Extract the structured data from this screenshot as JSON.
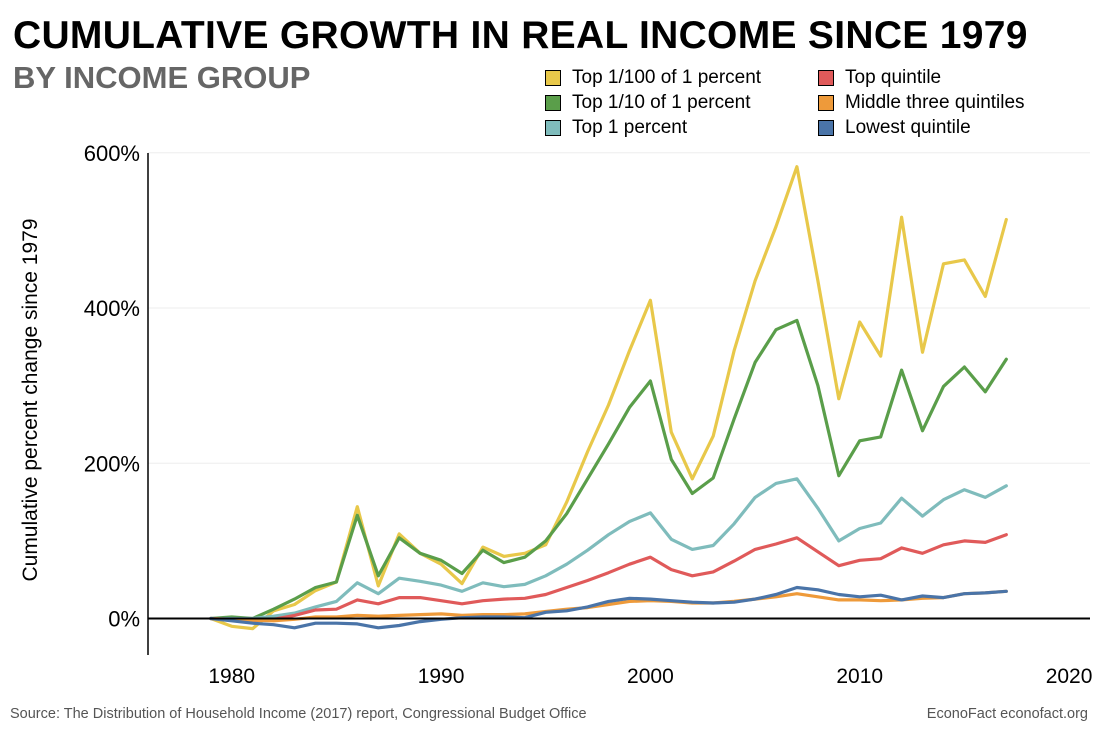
{
  "footer": {
    "source": "Source: The Distribution of Household Income (2017) report, Congressional Budget Office",
    "brand": "EconoFact  econofact.org"
  },
  "chart_data": {
    "type": "line",
    "title": "CUMULATIVE GROWTH IN REAL INCOME SINCE 1979",
    "subtitle": "BY INCOME GROUP",
    "xlabel": "",
    "ylabel": "Cumulative percent change since 1979",
    "xlim": [
      1976,
      2021
    ],
    "ylim": [
      -47,
      610
    ],
    "x_ticks": [
      1980,
      1990,
      2000,
      2010,
      2020
    ],
    "x_tick_labels": [
      "1980",
      "1990",
      "2000",
      "2010",
      "2020"
    ],
    "y_ticks": [
      0,
      200,
      400,
      600
    ],
    "y_tick_labels": [
      "0%",
      "200%",
      "400%",
      "600%"
    ],
    "grid": true,
    "legend_position": "top-right",
    "x": [
      1979,
      1980,
      1981,
      1982,
      1983,
      1984,
      1985,
      1986,
      1987,
      1988,
      1989,
      1990,
      1991,
      1992,
      1993,
      1994,
      1995,
      1996,
      1997,
      1998,
      1999,
      2000,
      2001,
      2002,
      2003,
      2004,
      2005,
      2006,
      2007,
      2008,
      2009,
      2010,
      2011,
      2012,
      2013,
      2014,
      2015,
      2016,
      2017
    ],
    "series": [
      {
        "name": "Top 1/100 of 1 percent",
        "color": "#e8c84a",
        "values": [
          0,
          -10,
          -13,
          10,
          18,
          36,
          47,
          144,
          42,
          109,
          84,
          70,
          45,
          92,
          80,
          84,
          95,
          150,
          215,
          275,
          345,
          410,
          240,
          180,
          235,
          345,
          435,
          505,
          582,
          435,
          283,
          382,
          338,
          517,
          343,
          457,
          462,
          415,
          514
        ]
      },
      {
        "name": "Top 1/10 of 1 percent",
        "color": "#5a9e4a",
        "values": [
          0,
          2,
          0,
          12,
          25,
          40,
          47,
          133,
          55,
          104,
          84,
          75,
          58,
          88,
          72,
          79,
          100,
          135,
          180,
          225,
          272,
          306,
          205,
          161,
          181,
          257,
          330,
          372,
          384,
          300,
          184,
          229,
          234,
          320,
          242,
          299,
          324,
          292,
          334
        ]
      },
      {
        "name": "Top 1 percent",
        "color": "#7fbcbc",
        "values": [
          0,
          0,
          0,
          3,
          7,
          15,
          22,
          46,
          32,
          52,
          48,
          43,
          35,
          46,
          41,
          44,
          55,
          70,
          88,
          108,
          125,
          136,
          102,
          89,
          94,
          122,
          156,
          174,
          180,
          142,
          100,
          116,
          123,
          155,
          132,
          153,
          166,
          156,
          171
        ]
      },
      {
        "name": "Top quintile",
        "color": "#e05a5a",
        "values": [
          0,
          -2,
          -3,
          -1,
          4,
          11,
          12,
          24,
          19,
          27,
          27,
          23,
          19,
          23,
          25,
          26,
          31,
          40,
          49,
          59,
          70,
          79,
          63,
          55,
          60,
          74,
          89,
          96,
          104,
          86,
          68,
          75,
          77,
          91,
          84,
          95,
          100,
          98,
          108
        ]
      },
      {
        "name": "Middle three quintiles",
        "color": "#ee9a3a",
        "values": [
          0,
          -1,
          -2,
          -3,
          -1,
          2,
          2,
          4,
          3,
          4,
          5,
          6,
          4,
          5,
          5,
          6,
          9,
          12,
          14,
          18,
          22,
          23,
          22,
          20,
          20,
          22,
          25,
          28,
          32,
          28,
          24,
          24,
          23,
          24,
          26,
          27,
          32,
          33,
          35
        ]
      },
      {
        "name": "Lowest quintile",
        "color": "#4a74a8",
        "values": [
          0,
          -3,
          -6,
          -8,
          -12,
          -6,
          -6,
          -7,
          -12,
          -9,
          -4,
          -1,
          1,
          2,
          2,
          1,
          8,
          10,
          15,
          22,
          26,
          25,
          23,
          21,
          20,
          21,
          25,
          31,
          40,
          37,
          31,
          28,
          30,
          24,
          29,
          27,
          32,
          33,
          35
        ]
      }
    ]
  }
}
